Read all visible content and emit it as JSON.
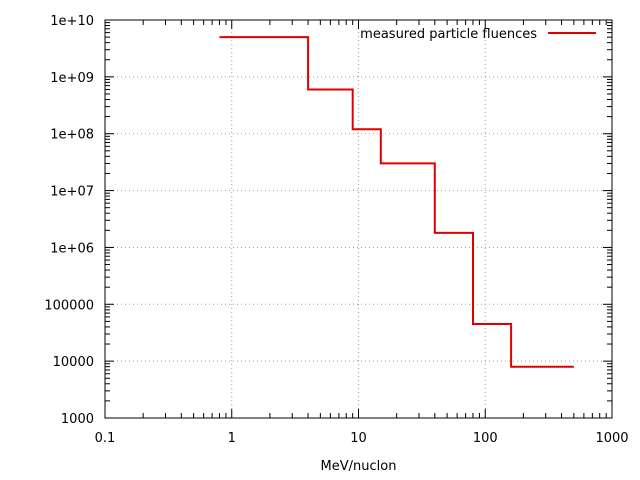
{
  "chart_data": {
    "type": "line",
    "style": "step",
    "title": "",
    "xlabel": "MeV/nuclon",
    "ylabel": "",
    "x_scale": "log",
    "y_scale": "log",
    "xlim": [
      0.1,
      1000
    ],
    "ylim": [
      1000,
      10000000000
    ],
    "grid": true,
    "legend_position": "top-right",
    "x_ticks": [
      {
        "value": 0.1,
        "label": "0.1"
      },
      {
        "value": 1,
        "label": "1"
      },
      {
        "value": 10,
        "label": "10"
      },
      {
        "value": 100,
        "label": "100"
      },
      {
        "value": 1000,
        "label": "1000"
      }
    ],
    "y_ticks": [
      {
        "value": 1000,
        "label": "1000"
      },
      {
        "value": 10000,
        "label": "10000"
      },
      {
        "value": 100000,
        "label": "100000"
      },
      {
        "value": 1000000,
        "label": "1e+06"
      },
      {
        "value": 10000000,
        "label": "1e+07"
      },
      {
        "value": 100000000,
        "label": "1e+08"
      },
      {
        "value": 1000000000,
        "label": "1e+09"
      },
      {
        "value": 10000000000,
        "label": "1e+10"
      }
    ],
    "series": [
      {
        "name": "measured particle fluences",
        "color": "#e00000",
        "steps": [
          {
            "x_start": 0.8,
            "x_end": 4,
            "y": 5000000000
          },
          {
            "x_start": 4,
            "x_end": 9,
            "y": 600000000
          },
          {
            "x_start": 9,
            "x_end": 15,
            "y": 120000000
          },
          {
            "x_start": 15,
            "x_end": 40,
            "y": 30000000
          },
          {
            "x_start": 40,
            "x_end": 80,
            "y": 1800000
          },
          {
            "x_start": 80,
            "x_end": 160,
            "y": 45000
          },
          {
            "x_start": 160,
            "x_end": 500,
            "y": 8000
          }
        ]
      }
    ]
  }
}
